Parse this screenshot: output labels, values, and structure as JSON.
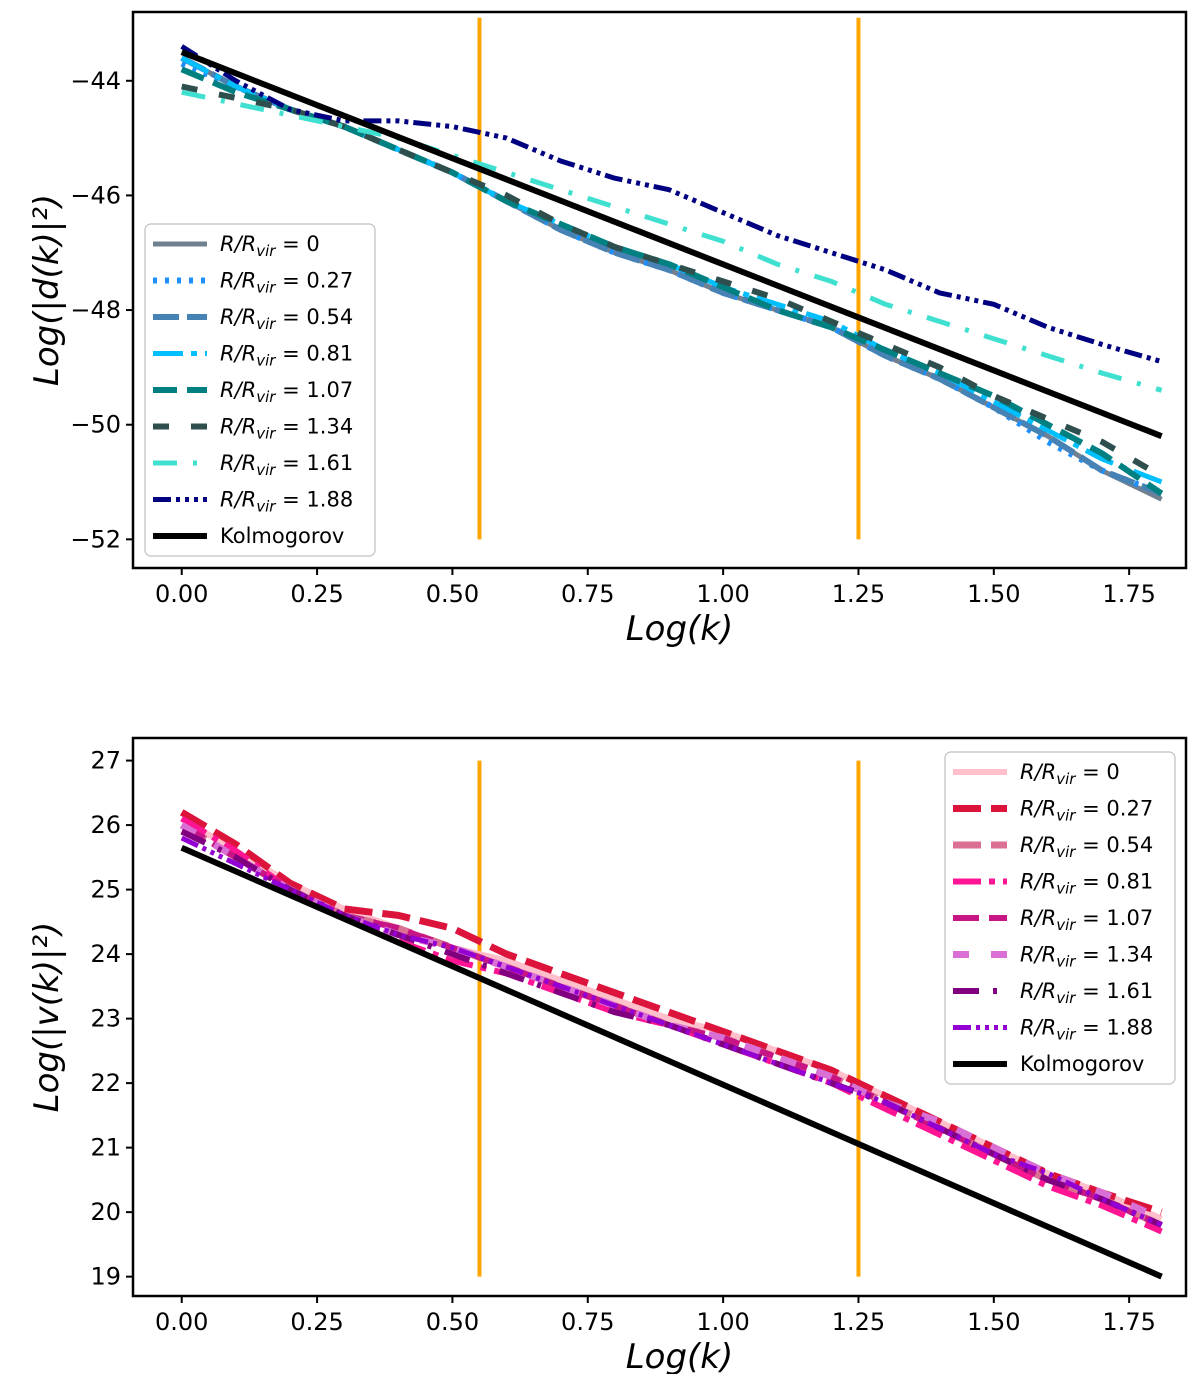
{
  "chart_data": [
    {
      "type": "line",
      "panel": "top",
      "xlabel": "Log(k)",
      "ylabel": "Log(|d(k)|²)",
      "xlim": [
        -0.09,
        1.855
      ],
      "ylim": [
        -52.5,
        -42.8
      ],
      "xticks": [
        "0.00",
        "0.25",
        "0.50",
        "0.75",
        "1.00",
        "1.25",
        "1.50",
        "1.75"
      ],
      "yticks": [
        "−52",
        "−50",
        "−48",
        "−46",
        "−44"
      ],
      "legend_position": "lower-left",
      "vertical_markers": {
        "x": [
          0.55,
          1.25
        ],
        "y_range": [
          -52,
          -42.9
        ],
        "color": "#ffa500"
      },
      "series": [
        {
          "name": "R/R_vir = 0",
          "label_main": "R/R",
          "label_sub": "vir",
          "label_value": " = 0",
          "color": "#708090",
          "dash": "",
          "width": 5,
          "x": [
            0,
            0.1,
            0.2,
            0.3,
            0.4,
            0.5,
            0.6,
            0.7,
            0.8,
            0.9,
            1.0,
            1.1,
            1.2,
            1.3,
            1.4,
            1.5,
            1.6,
            1.7,
            1.81
          ],
          "y": [
            -43.6,
            -44.1,
            -44.5,
            -44.8,
            -45.2,
            -45.6,
            -46.1,
            -46.6,
            -47.0,
            -47.3,
            -47.7,
            -48.0,
            -48.3,
            -48.8,
            -49.2,
            -49.7,
            -50.2,
            -50.8,
            -51.3
          ]
        },
        {
          "name": "R/R_vir = 0.27",
          "label_main": "R/R",
          "label_sub": "vir",
          "label_value": " = 0.27",
          "color": "#1e90ff",
          "dash": "4 8",
          "width": 6,
          "x": [
            0,
            0.1,
            0.2,
            0.3,
            0.4,
            0.5,
            0.6,
            0.7,
            0.8,
            0.9,
            1.0,
            1.1,
            1.2,
            1.3,
            1.4,
            1.5,
            1.6,
            1.7,
            1.81
          ],
          "y": [
            -43.7,
            -44.1,
            -44.5,
            -44.8,
            -45.2,
            -45.6,
            -46.1,
            -46.6,
            -47.0,
            -47.3,
            -47.7,
            -48.0,
            -48.3,
            -48.8,
            -49.2,
            -49.7,
            -50.3,
            -50.8,
            -51.2
          ]
        },
        {
          "name": "R/R_vir = 0.54",
          "label_main": "R/R",
          "label_sub": "vir",
          "label_value": " = 0.54",
          "color": "#4682b4",
          "dash": "26 8",
          "width": 6,
          "x": [
            0,
            0.1,
            0.2,
            0.3,
            0.4,
            0.5,
            0.6,
            0.7,
            0.8,
            0.9,
            1.0,
            1.1,
            1.2,
            1.3,
            1.4,
            1.5,
            1.6,
            1.7,
            1.81
          ],
          "y": [
            -43.6,
            -44.1,
            -44.5,
            -44.8,
            -45.2,
            -45.6,
            -46.1,
            -46.6,
            -47.0,
            -47.3,
            -47.7,
            -48.0,
            -48.3,
            -48.8,
            -49.2,
            -49.7,
            -50.2,
            -50.8,
            -51.2
          ]
        },
        {
          "name": "R/R_vir = 0.81",
          "label_main": "R/R",
          "label_sub": "vir",
          "label_value": " = 0.81",
          "color": "#00bfff",
          "dash": "30 8 6 8",
          "width": 5,
          "x": [
            0,
            0.1,
            0.2,
            0.3,
            0.4,
            0.5,
            0.6,
            0.7,
            0.8,
            0.9,
            1.0,
            1.1,
            1.2,
            1.3,
            1.4,
            1.5,
            1.6,
            1.7,
            1.81
          ],
          "y": [
            -43.6,
            -44.1,
            -44.5,
            -44.8,
            -45.2,
            -45.6,
            -46.1,
            -46.5,
            -46.9,
            -47.2,
            -47.6,
            -47.9,
            -48.2,
            -48.7,
            -49.1,
            -49.6,
            -50.1,
            -50.6,
            -51.0
          ]
        },
        {
          "name": "R/R_vir = 1.07",
          "label_main": "R/R",
          "label_sub": "vir",
          "label_value": " = 1.07",
          "color": "#008080",
          "dash": "24 10",
          "width": 6,
          "x": [
            0,
            0.1,
            0.2,
            0.3,
            0.4,
            0.5,
            0.6,
            0.7,
            0.8,
            0.9,
            1.0,
            1.1,
            1.2,
            1.3,
            1.4,
            1.5,
            1.6,
            1.7,
            1.81
          ],
          "y": [
            -43.8,
            -44.2,
            -44.5,
            -44.8,
            -45.2,
            -45.6,
            -46.1,
            -46.5,
            -46.9,
            -47.2,
            -47.6,
            -48.0,
            -48.3,
            -48.7,
            -49.1,
            -49.5,
            -50.0,
            -50.5,
            -51.2
          ]
        },
        {
          "name": "R/R_vir = 1.34",
          "label_main": "R/R",
          "label_sub": "vir",
          "label_value": " = 1.34",
          "color": "#2f4f4f",
          "dash": "16 22",
          "width": 6,
          "x": [
            0,
            0.1,
            0.2,
            0.3,
            0.4,
            0.5,
            0.6,
            0.7,
            0.8,
            0.9,
            1.0,
            1.1,
            1.2,
            1.3,
            1.4,
            1.5,
            1.6,
            1.7,
            1.81
          ],
          "y": [
            -44.1,
            -44.3,
            -44.5,
            -44.8,
            -45.2,
            -45.6,
            -46.0,
            -46.5,
            -46.9,
            -47.2,
            -47.5,
            -47.8,
            -48.2,
            -48.6,
            -49.0,
            -49.5,
            -49.9,
            -50.3,
            -50.9
          ]
        },
        {
          "name": "R/R_vir = 1.61",
          "label_main": "R/R",
          "label_sub": "vir",
          "label_value": " = 1.61",
          "color": "#40e0d0",
          "dash": "24 16 4 16",
          "width": 5,
          "x": [
            0,
            0.1,
            0.2,
            0.3,
            0.4,
            0.5,
            0.6,
            0.7,
            0.8,
            0.9,
            1.0,
            1.1,
            1.2,
            1.3,
            1.4,
            1.5,
            1.6,
            1.7,
            1.81
          ],
          "y": [
            -44.2,
            -44.4,
            -44.6,
            -44.8,
            -45.0,
            -45.3,
            -45.6,
            -45.9,
            -46.2,
            -46.5,
            -46.8,
            -47.2,
            -47.5,
            -47.9,
            -48.2,
            -48.5,
            -48.8,
            -49.1,
            -49.4
          ]
        },
        {
          "name": "R/R_vir = 1.88",
          "label_main": "R/R",
          "label_sub": "vir",
          "label_value": " = 1.88",
          "color": "#000080",
          "dash": "18 5 4 5 4 5 4 5",
          "width": 5,
          "x": [
            0,
            0.1,
            0.2,
            0.3,
            0.4,
            0.5,
            0.6,
            0.7,
            0.8,
            0.9,
            1.0,
            1.1,
            1.2,
            1.3,
            1.4,
            1.5,
            1.6,
            1.7,
            1.81
          ],
          "y": [
            -43.4,
            -44.0,
            -44.5,
            -44.7,
            -44.7,
            -44.8,
            -45.0,
            -45.4,
            -45.7,
            -45.9,
            -46.3,
            -46.7,
            -47.0,
            -47.3,
            -47.7,
            -47.9,
            -48.3,
            -48.6,
            -48.9
          ]
        },
        {
          "name": "Kolmogorov",
          "label_main": "Kolmogorov",
          "label_sub": "",
          "label_value": "",
          "color": "#000000",
          "dash": "",
          "width": 6,
          "x": [
            0,
            1.81
          ],
          "y": [
            -43.5,
            -50.2
          ]
        }
      ]
    },
    {
      "type": "line",
      "panel": "bottom",
      "xlabel": "Log(k)",
      "ylabel": "Log(|v(k)|²)",
      "xlim": [
        -0.09,
        1.855
      ],
      "ylim": [
        18.7,
        27.35
      ],
      "xticks": [
        "0.00",
        "0.25",
        "0.50",
        "0.75",
        "1.00",
        "1.25",
        "1.50",
        "1.75"
      ],
      "yticks": [
        "19",
        "20",
        "21",
        "22",
        "23",
        "24",
        "25",
        "26",
        "27"
      ],
      "legend_position": "upper-right",
      "vertical_markers": {
        "x": [
          0.55,
          1.25
        ],
        "y_range": [
          19,
          27
        ],
        "color": "#ffa500"
      },
      "series": [
        {
          "name": "R/R_vir = 0",
          "label_main": "R/R",
          "label_sub": "vir",
          "label_value": " = 0",
          "color": "#ffc0cb",
          "dash": "",
          "width": 6,
          "x": [
            0,
            0.1,
            0.2,
            0.3,
            0.4,
            0.5,
            0.6,
            0.7,
            0.8,
            0.9,
            1.0,
            1.1,
            1.2,
            1.3,
            1.4,
            1.5,
            1.6,
            1.7,
            1.81
          ],
          "y": [
            26.1,
            25.6,
            25.1,
            24.7,
            24.4,
            24.1,
            23.9,
            23.6,
            23.3,
            23.0,
            22.8,
            22.5,
            22.2,
            21.8,
            21.4,
            21.0,
            20.6,
            20.3,
            19.9
          ]
        },
        {
          "name": "R/R_vir = 0.27",
          "label_main": "R/R",
          "label_sub": "vir",
          "label_value": " = 0.27",
          "color": "#dc143c",
          "dash": "28 10",
          "width": 7,
          "x": [
            0,
            0.1,
            0.2,
            0.3,
            0.4,
            0.5,
            0.6,
            0.7,
            0.8,
            0.9,
            1.0,
            1.1,
            1.2,
            1.3,
            1.4,
            1.5,
            1.6,
            1.7,
            1.81
          ],
          "y": [
            26.2,
            25.7,
            25.1,
            24.7,
            24.6,
            24.4,
            24.0,
            23.7,
            23.4,
            23.1,
            22.8,
            22.5,
            22.2,
            21.8,
            21.4,
            21.0,
            20.6,
            20.3,
            20.0
          ]
        },
        {
          "name": "R/R_vir = 0.54",
          "label_main": "R/R",
          "label_sub": "vir",
          "label_value": " = 0.54",
          "color": "#db7093",
          "dash": "28 10",
          "width": 7,
          "x": [
            0,
            0.1,
            0.2,
            0.3,
            0.4,
            0.5,
            0.6,
            0.7,
            0.8,
            0.9,
            1.0,
            1.1,
            1.2,
            1.3,
            1.4,
            1.5,
            1.6,
            1.7,
            1.81
          ],
          "y": [
            26.0,
            25.5,
            25.0,
            24.6,
            24.4,
            24.1,
            23.8,
            23.5,
            23.2,
            22.9,
            22.7,
            22.4,
            22.1,
            21.7,
            21.3,
            20.9,
            20.5,
            20.2,
            19.8
          ]
        },
        {
          "name": "R/R_vir = 0.81",
          "label_main": "R/R",
          "label_sub": "vir",
          "label_value": " = 0.81",
          "color": "#ff1493",
          "dash": "28 8 6 8",
          "width": 6,
          "x": [
            0,
            0.1,
            0.2,
            0.3,
            0.4,
            0.5,
            0.6,
            0.7,
            0.8,
            0.9,
            1.0,
            1.1,
            1.2,
            1.3,
            1.4,
            1.5,
            1.6,
            1.7,
            1.81
          ],
          "y": [
            26.1,
            25.6,
            25.0,
            24.6,
            24.2,
            23.9,
            23.7,
            23.4,
            23.1,
            22.9,
            22.6,
            22.3,
            22.0,
            21.6,
            21.2,
            20.8,
            20.4,
            20.1,
            19.7
          ]
        },
        {
          "name": "R/R_vir = 1.07",
          "label_main": "R/R",
          "label_sub": "vir",
          "label_value": " = 1.07",
          "color": "#c71585",
          "dash": "26 10",
          "width": 6,
          "x": [
            0,
            0.1,
            0.2,
            0.3,
            0.4,
            0.5,
            0.6,
            0.7,
            0.8,
            0.9,
            1.0,
            1.1,
            1.2,
            1.3,
            1.4,
            1.5,
            1.6,
            1.7,
            1.81
          ],
          "y": [
            26.0,
            25.5,
            25.0,
            24.6,
            24.4,
            24.1,
            23.8,
            23.5,
            23.2,
            22.9,
            22.7,
            22.4,
            22.1,
            21.7,
            21.3,
            20.9,
            20.5,
            20.2,
            19.8
          ]
        },
        {
          "name": "R/R_vir = 1.34",
          "label_main": "R/R",
          "label_sub": "vir",
          "label_value": " = 1.34",
          "color": "#da70d6",
          "dash": "16 22",
          "width": 7,
          "x": [
            0,
            0.1,
            0.2,
            0.3,
            0.4,
            0.5,
            0.6,
            0.7,
            0.8,
            0.9,
            1.0,
            1.1,
            1.2,
            1.3,
            1.4,
            1.5,
            1.6,
            1.7,
            1.81
          ],
          "y": [
            26.0,
            25.5,
            25.0,
            24.6,
            24.3,
            24.1,
            23.8,
            23.5,
            23.2,
            22.9,
            22.7,
            22.4,
            22.1,
            21.7,
            21.4,
            21.0,
            20.6,
            20.3,
            19.9
          ]
        },
        {
          "name": "R/R_vir = 1.61",
          "label_main": "R/R",
          "label_sub": "vir",
          "label_value": " = 1.61",
          "color": "#800080",
          "dash": "26 14 4 14",
          "width": 6,
          "x": [
            0,
            0.1,
            0.2,
            0.3,
            0.4,
            0.5,
            0.6,
            0.7,
            0.8,
            0.9,
            1.0,
            1.1,
            1.2,
            1.3,
            1.4,
            1.5,
            1.6,
            1.7,
            1.81
          ],
          "y": [
            25.9,
            25.5,
            25.0,
            24.6,
            24.3,
            24.0,
            23.7,
            23.4,
            23.1,
            22.9,
            22.6,
            22.3,
            22.0,
            21.7,
            21.3,
            20.9,
            20.5,
            20.2,
            19.8
          ]
        },
        {
          "name": "R/R_vir = 1.88",
          "label_main": "R/R",
          "label_sub": "vir",
          "label_value": " = 1.88",
          "color": "#9400d3",
          "dash": "18 5 4 5 4 5 4 5",
          "width": 5,
          "x": [
            0,
            0.1,
            0.2,
            0.3,
            0.4,
            0.5,
            0.6,
            0.7,
            0.8,
            0.9,
            1.0,
            1.1,
            1.2,
            1.3,
            1.4,
            1.5,
            1.6,
            1.7,
            1.81
          ],
          "y": [
            25.8,
            25.4,
            25.0,
            24.6,
            24.3,
            24.1,
            23.8,
            23.5,
            23.2,
            22.9,
            22.6,
            22.3,
            22.0,
            21.7,
            21.3,
            20.9,
            20.6,
            20.2,
            19.8
          ]
        },
        {
          "name": "Kolmogorov",
          "label_main": "Kolmogorov",
          "label_sub": "",
          "label_value": "",
          "color": "#000000",
          "dash": "",
          "width": 6,
          "x": [
            0,
            1.81
          ],
          "y": [
            25.65,
            19.0
          ]
        }
      ]
    }
  ]
}
